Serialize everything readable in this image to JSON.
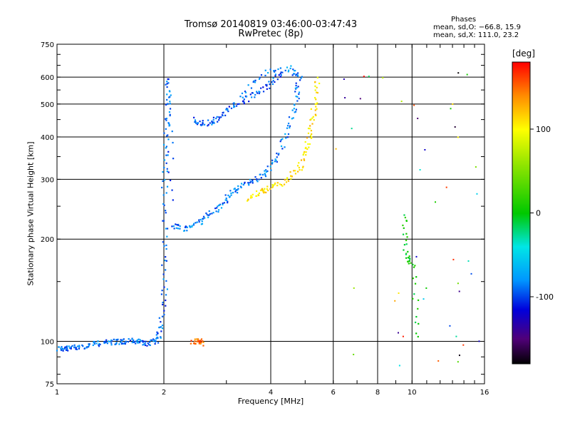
{
  "chart_data": {
    "type": "scatter",
    "title": "Tromsø 20140819 03:46:00-03:47:43",
    "subtitle": "RwPretec (8p)",
    "xlabel": "Frequency [MHz]",
    "ylabel": "Stationary phase Virtual Height [km]",
    "xscale": "log",
    "yscale": "log",
    "xlim": [
      1,
      16
    ],
    "ylim": [
      75,
      750
    ],
    "xticks": [
      1,
      2,
      4,
      6,
      8,
      10,
      16
    ],
    "xtick_labels": [
      "1",
      "2",
      "4",
      "6",
      "8",
      "10",
      "16"
    ],
    "yticks": [
      75,
      100,
      200,
      300,
      400,
      500,
      600,
      750
    ],
    "ytick_labels": [
      "75",
      "100",
      "200",
      "300",
      "400",
      "500",
      "600",
      "750"
    ],
    "grid": true,
    "colorbar": {
      "label": "[deg]",
      "range": [
        -180,
        180
      ],
      "ticks": [
        100,
        0,
        -100
      ],
      "tick_labels": [
        "100",
        "0",
        "-100"
      ],
      "colormap": "rainbow (black-purple-blue-cyan-green-yellow-orange-red)"
    },
    "stats": {
      "heading": "Phases",
      "line1": "mean, sd,O: −66.8, 15.9",
      "line2": "mean, sd,X: 111.0, 23.2"
    },
    "traces": [
      {
        "name": "",
        "phase_deg": -90,
        "points": [
          [
            1.0,
            96
          ],
          [
            1.05,
            95
          ],
          [
            1.1,
            97
          ],
          [
            1.2,
            97
          ],
          [
            1.3,
            99
          ],
          [
            1.4,
            100
          ],
          [
            1.5,
            100
          ],
          [
            1.6,
            101
          ],
          [
            1.7,
            100
          ],
          [
            1.8,
            99
          ],
          [
            1.9,
            101
          ],
          [
            1.95,
            110
          ],
          [
            2.0,
            140
          ],
          [
            2.0,
            200
          ],
          [
            2.0,
            300
          ],
          [
            2.02,
            400
          ],
          [
            2.05,
            500
          ],
          [
            2.05,
            600
          ],
          [
            2.1,
            250
          ]
        ]
      },
      {
        "name": "",
        "phase_deg": -85,
        "points": [
          [
            2.1,
            220
          ],
          [
            2.3,
            215
          ],
          [
            2.5,
            225
          ],
          [
            2.7,
            240
          ],
          [
            2.9,
            255
          ],
          [
            3.1,
            275
          ],
          [
            3.3,
            290
          ],
          [
            3.6,
            300
          ],
          [
            3.9,
            320
          ],
          [
            4.2,
            360
          ],
          [
            4.5,
            430
          ],
          [
            4.7,
            520
          ],
          [
            4.8,
            600
          ],
          [
            4.5,
            640
          ],
          [
            3.8,
            620
          ],
          [
            3.2,
            520
          ]
        ]
      },
      {
        "name": "",
        "phase_deg": -95,
        "points": [
          [
            2.4,
            450
          ],
          [
            2.6,
            440
          ],
          [
            2.8,
            450
          ],
          [
            3.0,
            480
          ],
          [
            3.3,
            510
          ],
          [
            3.6,
            540
          ],
          [
            4.0,
            580
          ],
          [
            4.3,
            620
          ]
        ]
      },
      {
        "name": "",
        "phase_deg": 110,
        "points": [
          [
            3.4,
            265
          ],
          [
            3.7,
            275
          ],
          [
            4.0,
            285
          ],
          [
            4.4,
            300
          ],
          [
            4.8,
            325
          ],
          [
            5.0,
            370
          ],
          [
            5.2,
            430
          ],
          [
            5.3,
            500
          ],
          [
            5.4,
            600
          ]
        ]
      },
      {
        "name": "",
        "phase_deg": 150,
        "points": [
          [
            2.4,
            100
          ],
          [
            2.5,
            101
          ],
          [
            2.55,
            99
          ]
        ]
      },
      {
        "name": "",
        "phase_deg": 0,
        "points": [
          [
            9.5,
            240
          ],
          [
            9.6,
            180
          ],
          [
            10.0,
            170
          ],
          [
            10.4,
            100
          ]
        ]
      }
    ]
  }
}
